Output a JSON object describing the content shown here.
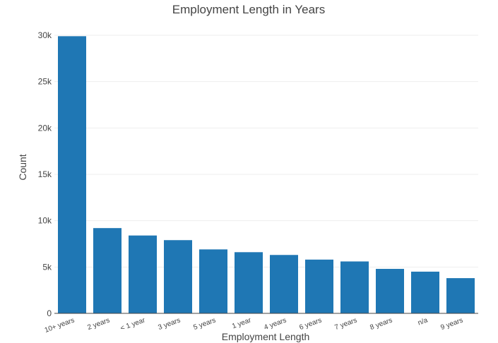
{
  "chart_data": {
    "type": "bar",
    "title": "Employment Length in Years",
    "xlabel": "Employment Length",
    "ylabel": "Count",
    "categories": [
      "10+ years",
      "2 years",
      "< 1 year",
      "3 years",
      "5 years",
      "1 year",
      "4 years",
      "6 years",
      "7 years",
      "8 years",
      "n/a",
      "9 years"
    ],
    "values": [
      29900,
      9200,
      8400,
      7900,
      6900,
      6600,
      6300,
      5800,
      5600,
      4800,
      4500,
      3800
    ],
    "ylim": [
      0,
      30000
    ],
    "yticks": [
      0,
      5000,
      10000,
      15000,
      20000,
      25000,
      30000
    ],
    "ytick_labels": [
      "0",
      "5k",
      "10k",
      "15k",
      "20k",
      "25k",
      "30k"
    ],
    "bar_color": "#1f77b4",
    "grid": true,
    "legend": "none"
  }
}
